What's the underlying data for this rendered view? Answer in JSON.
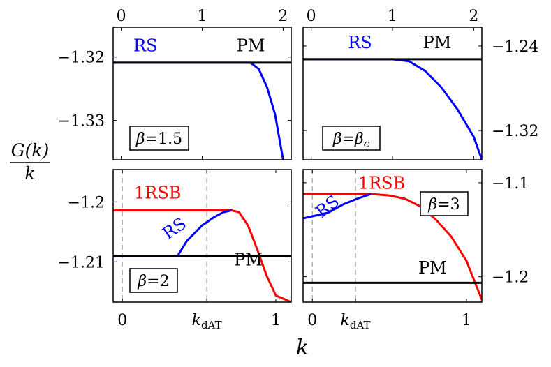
{
  "figure": {
    "ylabel": "G(k)/k",
    "ylabel_num": "G(k)",
    "ylabel_den": "k",
    "xlabel": "k"
  },
  "chart_data": [
    {
      "type": "line",
      "panel": "top-left",
      "box_label": "β=1.5",
      "x_axis": "top",
      "y_axis": "left",
      "xlim": [
        -0.1,
        2.1
      ],
      "ylim": [
        -1.3362,
        -1.3153
      ],
      "xticks": [
        0,
        1,
        2
      ],
      "xtick_labels": [
        "0",
        "1",
        "2"
      ],
      "yticks": [
        -1.32,
        -1.33
      ],
      "ytick_labels": [
        "−1.32",
        "−1.33"
      ],
      "series": [
        {
          "name": "RS",
          "color": "#0000ff",
          "points": [
            [
              -0.1,
              -1.3209
            ],
            [
              1.6,
              -1.3209
            ],
            [
              1.7,
              -1.3219
            ],
            [
              1.8,
              -1.3247
            ],
            [
              1.9,
              -1.329
            ],
            [
              2.0,
              -1.3362
            ]
          ]
        },
        {
          "name": "PM",
          "color": "#000000",
          "points": [
            [
              -0.1,
              -1.3209
            ],
            [
              2.1,
              -1.3209
            ]
          ]
        }
      ],
      "labels": [
        {
          "text": "RS",
          "x": 0.3,
          "y": -1.3191,
          "color": "#0000ff"
        },
        {
          "text": "PM",
          "x": 1.6,
          "y": -1.3191,
          "color": "#000000"
        }
      ]
    },
    {
      "type": "line",
      "panel": "top-right",
      "box_label": "β=βc",
      "x_axis": "top",
      "y_axis": "right",
      "xlim": [
        -0.1,
        2.1
      ],
      "ylim": [
        -1.3477,
        -1.2222
      ],
      "xticks": [
        0,
        1,
        2
      ],
      "xtick_labels": [
        "0",
        "1",
        "2"
      ],
      "yticks": [
        -1.24,
        -1.32
      ],
      "ytick_labels": [
        "−1.24",
        "−1.32"
      ],
      "series": [
        {
          "name": "RS",
          "color": "#0000ff",
          "points": [
            [
              -0.1,
              -1.2525
            ],
            [
              1.0,
              -1.2525
            ],
            [
              1.2,
              -1.2543
            ],
            [
              1.4,
              -1.2634
            ],
            [
              1.6,
              -1.279
            ],
            [
              1.8,
              -1.3
            ],
            [
              2.0,
              -1.326
            ],
            [
              2.1,
              -1.3477
            ]
          ]
        },
        {
          "name": "PM",
          "color": "#000000",
          "points": [
            [
              -0.1,
              -1.2525
            ],
            [
              2.1,
              -1.2525
            ]
          ]
        }
      ],
      "labels": [
        {
          "text": "RS",
          "x": 0.6,
          "y": -1.242,
          "color": "#0000ff"
        },
        {
          "text": "PM",
          "x": 1.55,
          "y": -1.242,
          "color": "#000000"
        }
      ]
    },
    {
      "type": "line",
      "panel": "bottom-left",
      "box_label": "β=2",
      "x_axis": "bottom",
      "y_axis": "left",
      "xlim": [
        -0.06,
        1.1
      ],
      "ylim": [
        -1.2167,
        -1.1946
      ],
      "xticks": [
        0,
        0.55,
        1
      ],
      "xtick_labels": [
        "0",
        "k_dAT",
        "1"
      ],
      "vlines": [
        0,
        0.55
      ],
      "yticks": [
        -1.2,
        -1.21
      ],
      "ytick_labels": [
        "−1.2",
        "−1.21"
      ],
      "series": [
        {
          "name": "1RSB",
          "color": "#ff0000",
          "points": [
            [
              -0.06,
              -1.2014
            ],
            [
              0.71,
              -1.2014
            ],
            [
              0.76,
              -1.2017
            ],
            [
              0.82,
              -1.204
            ],
            [
              0.88,
              -1.208
            ],
            [
              0.94,
              -1.2123
            ],
            [
              1.0,
              -1.2156
            ],
            [
              1.1,
              -1.2167
            ]
          ]
        },
        {
          "name": "RS",
          "color": "#0000ff",
          "points": [
            [
              -0.06,
              -1.209
            ],
            [
              0.36,
              -1.209
            ],
            [
              0.42,
              -1.2065
            ],
            [
              0.52,
              -1.2039
            ],
            [
              0.6,
              -1.2025
            ],
            [
              0.66,
              -1.2017
            ],
            [
              0.71,
              -1.2014
            ]
          ]
        },
        {
          "name": "PM",
          "color": "#000000",
          "points": [
            [
              -0.06,
              -1.209
            ],
            [
              1.1,
              -1.209
            ]
          ]
        }
      ],
      "labels": [
        {
          "text": "1RSB",
          "x": 0.23,
          "y": -1.1994,
          "color": "#ff0000"
        },
        {
          "text": "RS",
          "x": 0.36,
          "y": -1.2052,
          "color": "#0000ff",
          "rotate": -35
        },
        {
          "text": "PM",
          "x": 0.82,
          "y": -1.2106,
          "color": "#000000"
        }
      ]
    },
    {
      "type": "line",
      "panel": "bottom-right",
      "box_label": "β=3",
      "x_axis": "bottom",
      "y_axis": "right",
      "xlim": [
        -0.06,
        1.1
      ],
      "ylim": [
        -1.227,
        -1.086
      ],
      "xticks": [
        0,
        0.28,
        1
      ],
      "xtick_labels": [
        "0",
        "k_dAT",
        "1"
      ],
      "vlines": [
        0,
        0.28
      ],
      "yticks": [
        -1.1,
        -1.2
      ],
      "ytick_labels": [
        "−1.1",
        "−1.2"
      ],
      "series": [
        {
          "name": "1RSB",
          "color": "#ff0000",
          "points": [
            [
              -0.06,
              -1.112
            ],
            [
              0.38,
              -1.112
            ],
            [
              0.5,
              -1.1135
            ],
            [
              0.6,
              -1.117
            ],
            [
              0.7,
              -1.125
            ],
            [
              0.8,
              -1.139
            ],
            [
              0.9,
              -1.157
            ],
            [
              1.0,
              -1.183
            ],
            [
              1.1,
              -1.2245
            ]
          ]
        },
        {
          "name": "RS",
          "color": "#0000ff",
          "points": [
            [
              -0.06,
              -1.138
            ],
            [
              0.1,
              -1.132
            ],
            [
              0.2,
              -1.123
            ],
            [
              0.3,
              -1.1165
            ],
            [
              0.38,
              -1.112
            ]
          ]
        },
        {
          "name": "PM",
          "color": "#000000",
          "points": [
            [
              -0.06,
              -1.2065
            ],
            [
              1.1,
              -1.2065
            ]
          ]
        }
      ],
      "labels": [
        {
          "text": "1RSB",
          "x": 0.45,
          "y": -1.1065,
          "color": "#ff0000"
        },
        {
          "text": "RS",
          "x": 0.12,
          "y": -1.13,
          "color": "#0000ff",
          "rotate": -38
        },
        {
          "text": "PM",
          "x": 0.78,
          "y": -1.1965,
          "color": "#000000"
        }
      ]
    }
  ]
}
